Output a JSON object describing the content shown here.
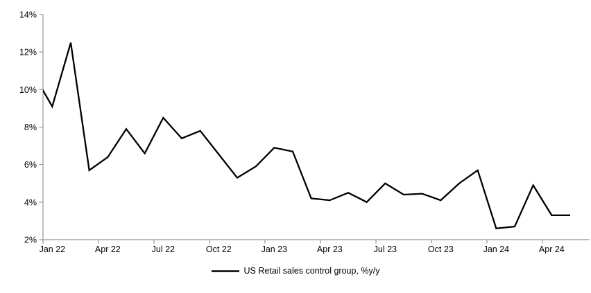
{
  "chart_data": {
    "type": "line",
    "title": "",
    "x": [
      "Dec 21",
      "Jan 22",
      "Feb 22",
      "Mar 22",
      "Apr 22",
      "May 22",
      "Jun 22",
      "Jul 22",
      "Aug 22",
      "Sep 22",
      "Oct 22",
      "Nov 22",
      "Dec 22",
      "Jan 23",
      "Feb 23",
      "Mar 23",
      "Apr 23",
      "May 23",
      "Jun 23",
      "Jul 23",
      "Aug 23",
      "Sep 23",
      "Oct 23",
      "Nov 23",
      "Dec 23",
      "Jan 24",
      "Feb 24",
      "Mar 24",
      "Apr 24",
      "May 24"
    ],
    "series": [
      {
        "name": "US Retail sales control group, %y/y",
        "color": "#000000",
        "values": [
          10.8,
          9.1,
          12.5,
          5.7,
          6.4,
          7.9,
          6.6,
          8.5,
          7.4,
          7.8,
          6.55,
          5.3,
          5.9,
          6.9,
          6.7,
          4.2,
          4.1,
          4.5,
          4.0,
          5.0,
          4.4,
          4.45,
          4.1,
          5.0,
          5.7,
          2.6,
          2.7,
          4.9,
          3.3,
          3.3
        ]
      }
    ],
    "x_axis": {
      "tick_labels": [
        "Jan 22",
        "Apr 22",
        "Jul 22",
        "Oct 22",
        "Jan 23",
        "Apr 23",
        "Jul 23",
        "Oct 23",
        "Jan 24",
        "Apr 24"
      ],
      "tick_interval_months": 3
    },
    "y_axis": {
      "min": 2,
      "max": 14,
      "ticks": [
        2,
        4,
        6,
        8,
        10,
        12,
        14
      ],
      "tick_labels": [
        "2%",
        "4%",
        "6%",
        "8%",
        "10%",
        "12%",
        "14%"
      ],
      "format": "percent"
    },
    "grid": false,
    "legend": {
      "position": "bottom-center",
      "entries": [
        "US Retail sales control group, %y/y"
      ]
    },
    "colors": {
      "line": "#000000",
      "axis": "#969696",
      "text": "#000000",
      "background": "#ffffff"
    },
    "notes": "First data point (Dec 21) is partially clipped by the left plot edge; line enters at ~9.9%."
  }
}
